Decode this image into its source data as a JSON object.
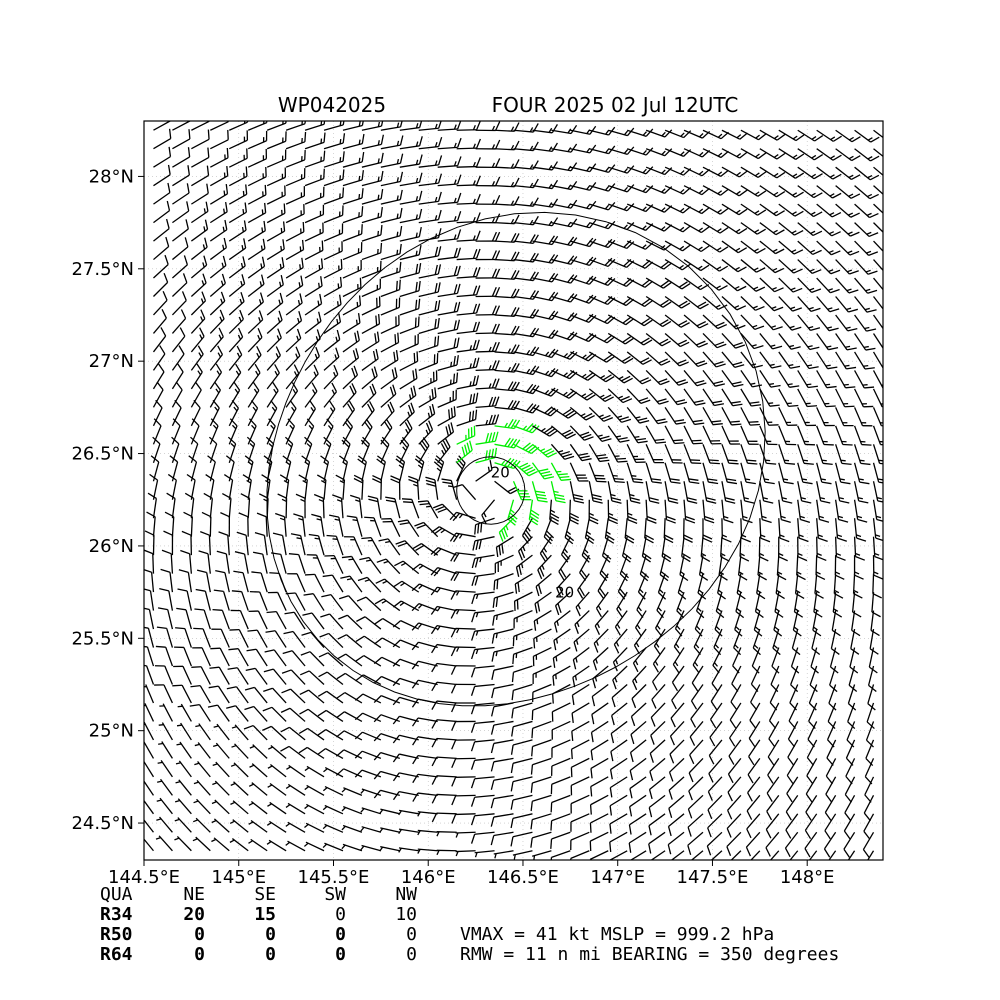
{
  "chart_data": {
    "type": "wind_barb_map",
    "title_left": "WP042025",
    "title_right": "FOUR 2025 02 Jul 12UTC",
    "x_tick_labels": [
      "144.5°E",
      "145°E",
      "145.5°E",
      "146°E",
      "146.5°E",
      "147°E",
      "147.5°E",
      "148°E"
    ],
    "x_ticks": [
      144.5,
      145.0,
      145.5,
      146.0,
      146.5,
      147.0,
      147.5,
      148.0
    ],
    "y_tick_labels": [
      "24.5°N",
      "25°N",
      "25.5°N",
      "26°N",
      "26.5°N",
      "27°N",
      "27.5°N",
      "28°N"
    ],
    "y_ticks": [
      24.5,
      25.0,
      25.5,
      26.0,
      26.5,
      27.0,
      27.5,
      28.0
    ],
    "xlim": [
      144.5,
      148.4
    ],
    "ylim": [
      24.3,
      28.3
    ],
    "grid": true,
    "storm_center": [
      146.3,
      26.3
    ],
    "contour_labels": [
      {
        "text": "20",
        "lon": 146.38,
        "lat": 26.37
      },
      {
        "text": "20",
        "lon": 146.72,
        "lat": 25.72
      }
    ],
    "colors": {
      "below_34kt": "#000000",
      "34_to_50kt": "#00ee00",
      "50_to_64kt": "#ffa500",
      "contour": "#000000"
    },
    "wind_radii_table": {
      "columns": [
        "QUA",
        "NE",
        "SE",
        "SW",
        "NW"
      ],
      "rows": [
        {
          "label": "R34",
          "values": [
            "20",
            "15",
            "0",
            "10"
          ]
        },
        {
          "label": "R50",
          "values": [
            "0",
            "0",
            "0",
            "0"
          ]
        },
        {
          "label": "R64",
          "values": [
            "0",
            "0",
            "0",
            "0"
          ]
        }
      ]
    },
    "summary_line1": "VMAX =  41 kt MSLP = 999.2 hPa",
    "summary_line2": "RMW =  11 n mi BEARING = 350 degrees"
  }
}
